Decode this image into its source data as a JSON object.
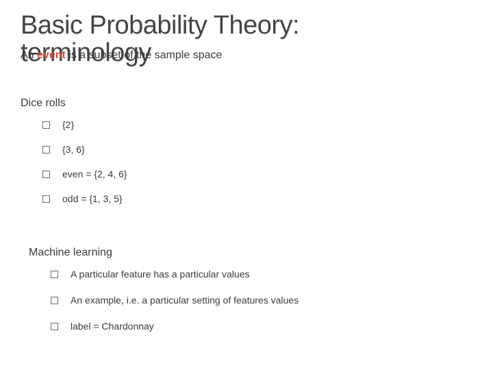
{
  "title_line1": "Basic Probability Theory:",
  "title_line2": "terminology",
  "subtitle_prefix": "An ",
  "subtitle_event": "event",
  "subtitle_rest": " is a subset of the sample space",
  "dice": {
    "heading": "Dice rolls",
    "items": [
      "{2}",
      "{3, 6}",
      "even = {2, 4, 6}",
      "odd = {1, 3, 5}"
    ]
  },
  "ml": {
    "heading": "Machine learning",
    "items": [
      "A particular feature has a particular values",
      "An example, i.e. a particular setting of features values",
      "label = Chardonnay"
    ]
  },
  "colors": {
    "text": "#3a3a3a",
    "accent": "#cc4b3b",
    "box_border": "#6a6a6a",
    "background": "#ffffff"
  }
}
